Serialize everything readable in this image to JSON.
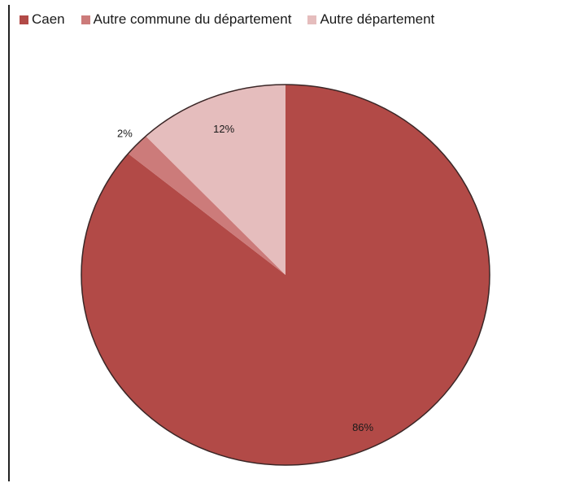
{
  "chart_data": {
    "type": "pie",
    "categories": [
      "Caen",
      "Autre commune du département",
      "Autre département"
    ],
    "values": [
      86,
      2,
      12
    ],
    "labels": [
      "86%",
      "2%",
      "12%"
    ],
    "colors": [
      "#b24a47",
      "#cc7b7a",
      "#e5bdbd"
    ],
    "start": "top",
    "direction": "clockwise",
    "legend_position": "top-left"
  }
}
